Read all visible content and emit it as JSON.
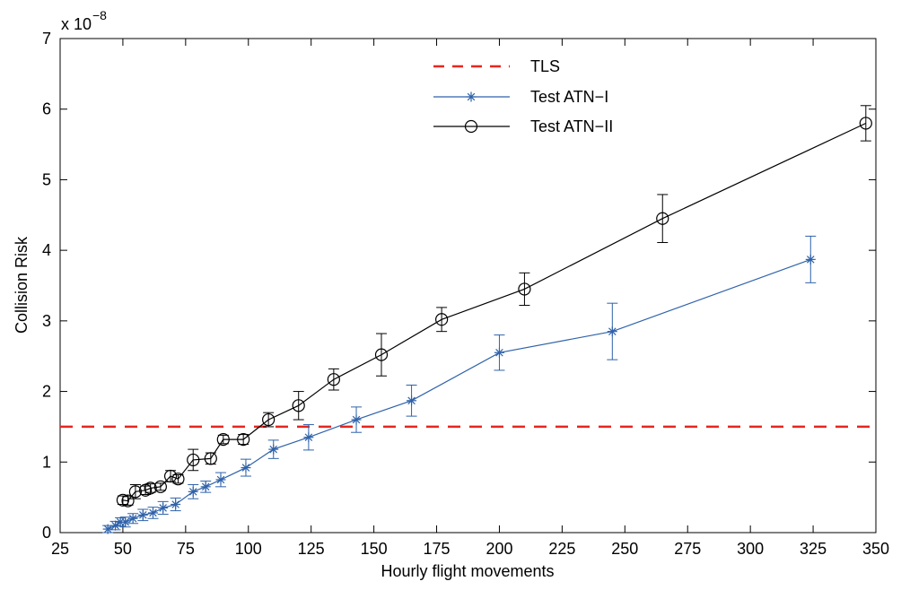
{
  "chart_data": {
    "type": "line",
    "xlabel": "Hourly flight movements",
    "ylabel": "Collision Risk",
    "y_multiplier": {
      "base": "x 10",
      "exponent": "−8"
    },
    "xlim": [
      25,
      350
    ],
    "ylim": [
      0,
      7
    ],
    "xticks": [
      25,
      50,
      75,
      100,
      125,
      150,
      175,
      200,
      225,
      250,
      275,
      300,
      325,
      350
    ],
    "yticks": [
      0,
      1,
      2,
      3,
      4,
      5,
      6,
      7
    ],
    "grid": false,
    "legend_position": "top-center",
    "series": [
      {
        "name": "TLS",
        "style": "dashed",
        "color": "#e8261e",
        "x": [
          25,
          350
        ],
        "y": [
          1.5,
          1.5
        ]
      },
      {
        "name": "Test ATN−I",
        "style": "solid",
        "marker": "asterisk",
        "color": "#2e62aa",
        "x": [
          44,
          47,
          49,
          51,
          54,
          58,
          62,
          66,
          71,
          78,
          83,
          89,
          99,
          110,
          124,
          143,
          165,
          200,
          245,
          324
        ],
        "y": [
          0.05,
          0.1,
          0.15,
          0.15,
          0.2,
          0.25,
          0.28,
          0.35,
          0.4,
          0.58,
          0.65,
          0.75,
          0.92,
          1.18,
          1.35,
          1.6,
          1.87,
          2.55,
          2.85,
          3.87
        ],
        "err": [
          0.05,
          0.06,
          0.06,
          0.07,
          0.07,
          0.08,
          0.08,
          0.09,
          0.09,
          0.1,
          0.08,
          0.1,
          0.12,
          0.13,
          0.18,
          0.18,
          0.22,
          0.25,
          0.4,
          0.33
        ]
      },
      {
        "name": "Test ATN−II",
        "style": "solid",
        "marker": "circle",
        "color": "#000000",
        "x": [
          50,
          52,
          55,
          59,
          61,
          65,
          69,
          72,
          78,
          85,
          90,
          98,
          108,
          120,
          134,
          153,
          177,
          210,
          265,
          346
        ],
        "y": [
          0.46,
          0.45,
          0.58,
          0.6,
          0.63,
          0.65,
          0.8,
          0.76,
          1.03,
          1.05,
          1.32,
          1.32,
          1.6,
          1.8,
          2.17,
          2.52,
          3.02,
          3.45,
          4.45,
          5.8
        ],
        "err": [
          0.06,
          0.06,
          0.1,
          0.06,
          0.06,
          0.05,
          0.08,
          0.06,
          0.15,
          0.08,
          0.06,
          0.07,
          0.1,
          0.2,
          0.15,
          0.3,
          0.17,
          0.23,
          0.34,
          0.25
        ]
      }
    ]
  }
}
